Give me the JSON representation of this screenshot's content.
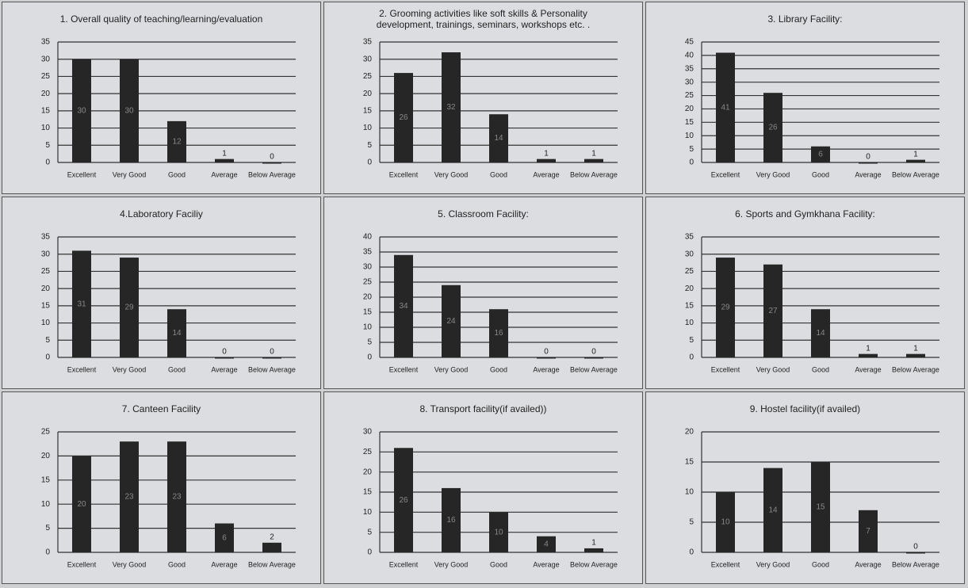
{
  "chart_data": [
    {
      "type": "bar",
      "title": "1. Overall quality of teaching/learning/evaluation",
      "categories": [
        "Excellent",
        "Very Good",
        "Good",
        "Average",
        "Below Average"
      ],
      "values": [
        30,
        30,
        12,
        1,
        0
      ],
      "color": "#262626",
      "ylim": [
        0,
        35
      ],
      "yticks": [
        0,
        5,
        10,
        15,
        20,
        25,
        30,
        35
      ],
      "grid": true
    },
    {
      "type": "bar",
      "title": "2. Grooming activities like soft skills & Personality development, trainings, seminars, workshops etc. .",
      "categories": [
        "Excellent",
        "Very Good",
        "Good",
        "Average",
        "Below Average"
      ],
      "values": [
        26,
        32,
        14,
        1,
        1
      ],
      "color": "#262626",
      "ylim": [
        0,
        35
      ],
      "yticks": [
        0,
        5,
        10,
        15,
        20,
        25,
        30,
        35
      ],
      "grid": true
    },
    {
      "type": "bar",
      "title": "3. Library Facility:",
      "categories": [
        "Excellent",
        "Very Good",
        "Good",
        "Average",
        "Below Average"
      ],
      "values": [
        41,
        26,
        6,
        0,
        1
      ],
      "color": "#262626",
      "ylim": [
        0,
        45
      ],
      "yticks": [
        0,
        5,
        10,
        15,
        20,
        25,
        30,
        35,
        40,
        45
      ],
      "grid": true
    },
    {
      "type": "bar",
      "title": "4.Laboratory Faciliy",
      "categories": [
        "Excellent",
        "Very Good",
        "Good",
        "Average",
        "Below Average"
      ],
      "values": [
        31,
        29,
        14,
        0,
        0
      ],
      "color": "#262626",
      "ylim": [
        0,
        35
      ],
      "yticks": [
        0,
        5,
        10,
        15,
        20,
        25,
        30,
        35
      ],
      "grid": true
    },
    {
      "type": "bar",
      "title": "5. Classroom Facility:",
      "categories": [
        "Excellent",
        "Very Good",
        "Good",
        "Average",
        "Below Average"
      ],
      "values": [
        34,
        24,
        16,
        0,
        0
      ],
      "color": "#262626",
      "ylim": [
        0,
        40
      ],
      "yticks": [
        0,
        5,
        10,
        15,
        20,
        25,
        30,
        35,
        40
      ],
      "grid": true
    },
    {
      "type": "bar",
      "title": "6. Sports and Gymkhana Facility:",
      "categories": [
        "Excellent",
        "Very Good",
        "Good",
        "Average",
        "Below Average"
      ],
      "values": [
        29,
        27,
        14,
        1,
        1
      ],
      "color": "#262626",
      "ylim": [
        0,
        35
      ],
      "yticks": [
        0,
        5,
        10,
        15,
        20,
        25,
        30,
        35
      ],
      "grid": true
    },
    {
      "type": "bar",
      "title": "7. Canteen Facility",
      "categories": [
        "Excellent",
        "Very Good",
        "Good",
        "Average",
        "Below Average"
      ],
      "values": [
        20,
        23,
        23,
        6,
        2
      ],
      "color": "#262626",
      "ylim": [
        0,
        25
      ],
      "yticks": [
        0,
        5,
        10,
        15,
        20,
        25
      ],
      "grid": true
    },
    {
      "type": "bar",
      "title": "8. Transport facility(if availed))",
      "categories": [
        "Excellent",
        "Very Good",
        "Good",
        "Average",
        "Below Average"
      ],
      "values": [
        26,
        16,
        10,
        4,
        1
      ],
      "color": "#262626",
      "ylim": [
        0,
        30
      ],
      "yticks": [
        0,
        5,
        10,
        15,
        20,
        25,
        30
      ],
      "grid": true
    },
    {
      "type": "bar",
      "title": "9. Hostel facility(if availed)",
      "categories": [
        "Excellent",
        "Very Good",
        "Good",
        "Average",
        "Below Average"
      ],
      "values": [
        10,
        14,
        15,
        7,
        0
      ],
      "color": "#262626",
      "ylim": [
        0,
        20
      ],
      "yticks": [
        0,
        5,
        10,
        15,
        20
      ],
      "grid": true
    }
  ]
}
